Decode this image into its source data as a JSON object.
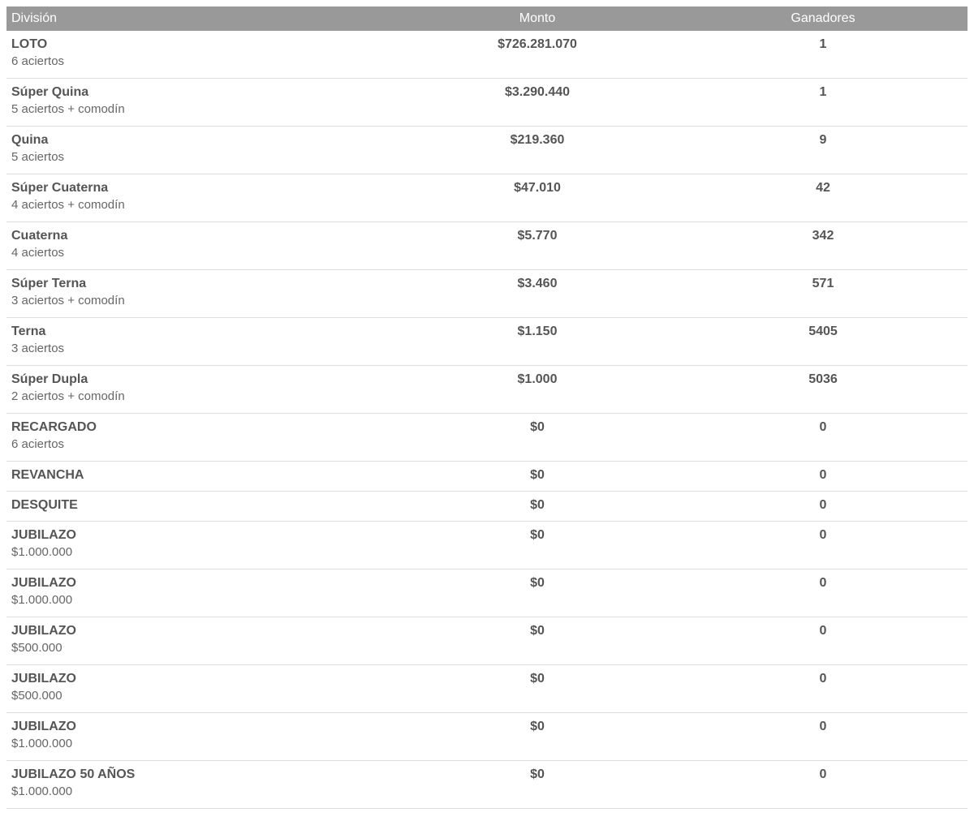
{
  "table": {
    "header": [
      "División",
      "Monto",
      "Ganadores"
    ],
    "rows": [
      {
        "name": "LOTO",
        "sub": "6 aciertos",
        "monto": "$726.281.070",
        "ganadores": "1"
      },
      {
        "name": "Súper Quina",
        "sub": "5 aciertos + comodín",
        "monto": "$3.290.440",
        "ganadores": "1"
      },
      {
        "name": "Quina",
        "sub": "5 aciertos",
        "monto": "$219.360",
        "ganadores": "9"
      },
      {
        "name": "Súper Cuaterna",
        "sub": "4 aciertos + comodín",
        "monto": "$47.010",
        "ganadores": "42"
      },
      {
        "name": "Cuaterna",
        "sub": "4 aciertos",
        "monto": "$5.770",
        "ganadores": "342"
      },
      {
        "name": "Súper Terna",
        "sub": "3 aciertos + comodín",
        "monto": "$3.460",
        "ganadores": "571"
      },
      {
        "name": "Terna",
        "sub": "3 aciertos",
        "monto": "$1.150",
        "ganadores": "5405"
      },
      {
        "name": "Súper Dupla",
        "sub": "2 aciertos + comodín",
        "monto": "$1.000",
        "ganadores": "5036"
      },
      {
        "name": "RECARGADO",
        "sub": "6 aciertos",
        "monto": "$0",
        "ganadores": "0"
      },
      {
        "name": "REVANCHA",
        "monto": "$0",
        "ganadores": "0"
      },
      {
        "name": "DESQUITE",
        "monto": "$0",
        "ganadores": "0"
      },
      {
        "name": "JUBILAZO",
        "sub": "$1.000.000",
        "monto": "$0",
        "ganadores": "0"
      },
      {
        "name": "JUBILAZO",
        "sub": "$1.000.000",
        "monto": "$0",
        "ganadores": "0"
      },
      {
        "name": "JUBILAZO",
        "sub": "$500.000",
        "monto": "$0",
        "ganadores": "0"
      },
      {
        "name": "JUBILAZO",
        "sub": "$500.000",
        "monto": "$0",
        "ganadores": "0"
      },
      {
        "name": "JUBILAZO",
        "sub": "$1.000.000",
        "monto": "$0",
        "ganadores": "0"
      },
      {
        "name": "JUBILAZO 50 AÑOS",
        "sub": "$1.000.000",
        "monto": "$0",
        "ganadores": "0"
      }
    ]
  }
}
